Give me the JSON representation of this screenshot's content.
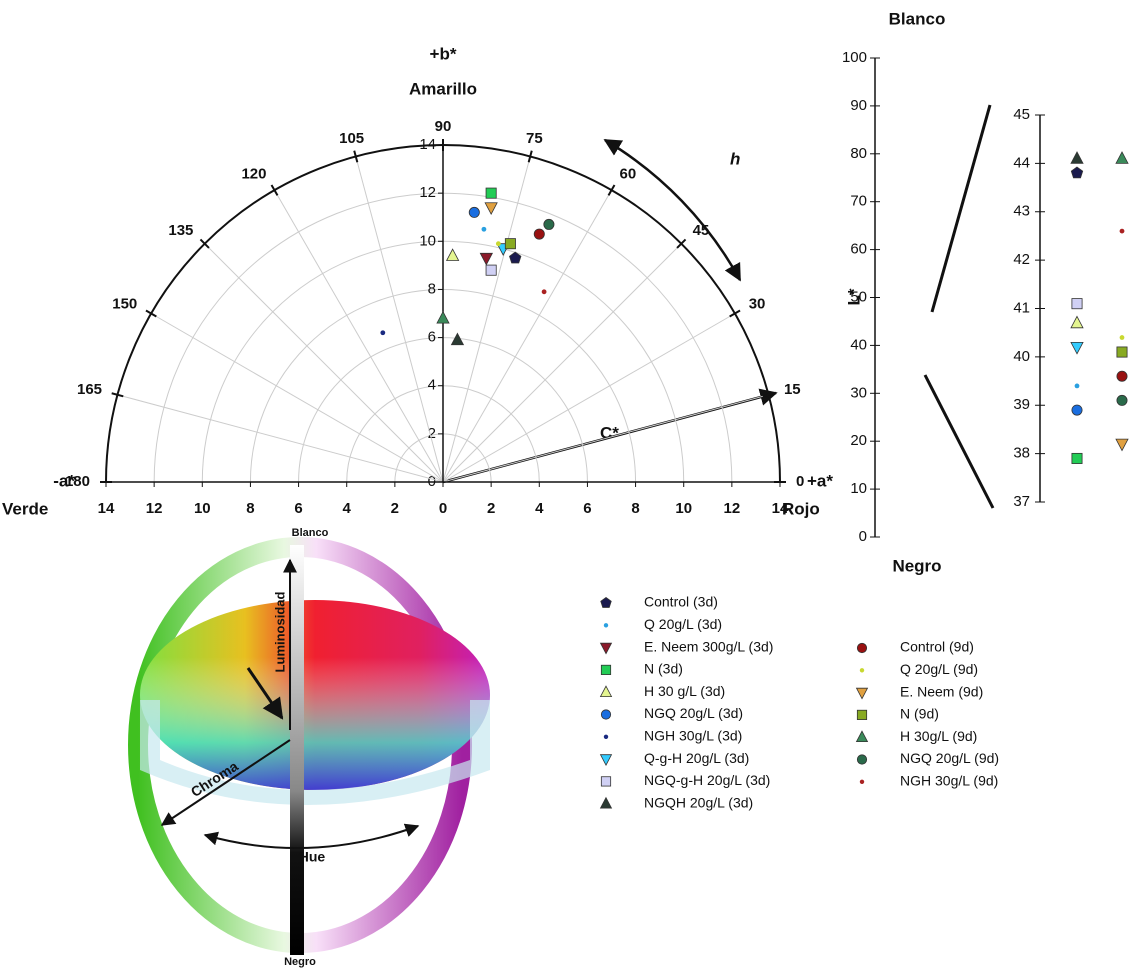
{
  "chart_data": [
    {
      "type": "polar-scatter",
      "top_label": "+b*",
      "top_label2": "Amarillo",
      "left_label": "-a*",
      "left_label2": "Verde",
      "right_label": "+a*",
      "right_label2": "Rojo",
      "hue_label": "h",
      "chroma_label": "C*",
      "angle_ticks": [
        0,
        15,
        30,
        45,
        60,
        75,
        90,
        105,
        120,
        135,
        150,
        165,
        180
      ],
      "xlim": [
        -14,
        14
      ],
      "xticks": [
        {
          "value": -14,
          "label": "14"
        },
        {
          "value": -12,
          "label": "12"
        },
        {
          "value": -10,
          "label": "10"
        },
        {
          "value": -8,
          "label": "8"
        },
        {
          "value": -6,
          "label": "6"
        },
        {
          "value": -4,
          "label": "4"
        },
        {
          "value": -2,
          "label": "2"
        },
        0,
        2,
        4,
        6,
        8,
        10,
        12,
        14
      ],
      "ylim": [
        0,
        14
      ],
      "yticks": [
        0,
        2,
        4,
        6,
        8,
        10,
        12,
        14
      ],
      "grid": true,
      "series": [
        {
          "name": "Control (3d)",
          "color": "#1a1a4e",
          "marker": "pentagon",
          "x": 3.0,
          "y": 9.3,
          "L": 43.8
        },
        {
          "name": "Q 20g/L (3d)",
          "color": "#2aa0e0",
          "marker": "dot",
          "x": 1.7,
          "y": 10.5,
          "L": 39.4
        },
        {
          "name": "E. Neem 300g/L (3d)",
          "color": "#8b1a2a",
          "marker": "triangle-down",
          "x": 1.8,
          "y": 9.3,
          "L": null
        },
        {
          "name": "N (3d)",
          "color": "#22cc55",
          "marker": "square",
          "x": 2.0,
          "y": 12.0,
          "L": 37.9
        },
        {
          "name": "H 30 g/L (3d)",
          "color": "#e4f590",
          "marker": "triangle",
          "x": 0.4,
          "y": 9.4,
          "L": 40.7
        },
        {
          "name": "NGQ 20g/L (3d)",
          "color": "#1a6ee0",
          "marker": "circle",
          "x": 1.3,
          "y": 11.2,
          "L": 38.9
        },
        {
          "name": "NGH 30g/L (3d)",
          "color": "#1a2a80",
          "marker": "dot",
          "x": -2.5,
          "y": 6.2,
          "L": null
        },
        {
          "name": "Q-g-H 20g/L (3d)",
          "color": "#33ccff",
          "marker": "triangle-down",
          "x": 2.5,
          "y": 9.7,
          "L": 40.2
        },
        {
          "name": "NGQ-g-H 20g/L (3d)",
          "color": "#d0d0f4",
          "marker": "square",
          "x": 2.0,
          "y": 8.8,
          "L": 41.1
        },
        {
          "name": "NGQH 20g/L (3d)",
          "color": "#2a3a32",
          "marker": "triangle",
          "x": 0.6,
          "y": 5.9,
          "L": 44.1
        },
        {
          "name": "Control (9d)",
          "color": "#991111",
          "marker": "circle",
          "x": 4.0,
          "y": 10.3,
          "L": 39.6
        },
        {
          "name": "Q 20g/L (9d)",
          "color": "#c8d830",
          "marker": "dot",
          "x": 2.3,
          "y": 9.9,
          "L": 40.4
        },
        {
          "name": "E. Neem (9d)",
          "color": "#e0a040",
          "marker": "triangle-down",
          "x": 2.0,
          "y": 11.4,
          "L": 38.2
        },
        {
          "name": "N (9d)",
          "color": "#88aa22",
          "marker": "square",
          "x": 2.8,
          "y": 9.9,
          "L": 40.1
        },
        {
          "name": "H 30g/L (9d)",
          "color": "#3a8a5a",
          "marker": "triangle",
          "x": 0.0,
          "y": 6.8,
          "L": 44.1
        },
        {
          "name": "NGQ 20g/L (9d)",
          "color": "#2a6a4a",
          "marker": "circle",
          "x": 4.4,
          "y": 10.7,
          "L": 39.1
        },
        {
          "name": "NGH 30g/L (9d)",
          "color": "#aa2222",
          "marker": "dot",
          "x": 4.2,
          "y": 7.9,
          "L": 42.6
        }
      ]
    },
    {
      "type": "axis",
      "title": "Blanco",
      "bottom_label": "Negro",
      "ylabel": "L*",
      "ylim": [
        0,
        100
      ],
      "yticks": [
        0,
        10,
        20,
        30,
        40,
        50,
        60,
        70,
        80,
        90,
        100
      ]
    },
    {
      "type": "scatter",
      "ylim": [
        37,
        45
      ],
      "yticks": [
        37,
        38,
        39,
        40,
        41,
        42,
        43,
        44,
        45
      ]
    }
  ],
  "illustration": {
    "top": "Blanco",
    "bottom": "Negro",
    "lightness": "Luminosidad",
    "chroma": "Chroma",
    "hue": "Hue"
  }
}
